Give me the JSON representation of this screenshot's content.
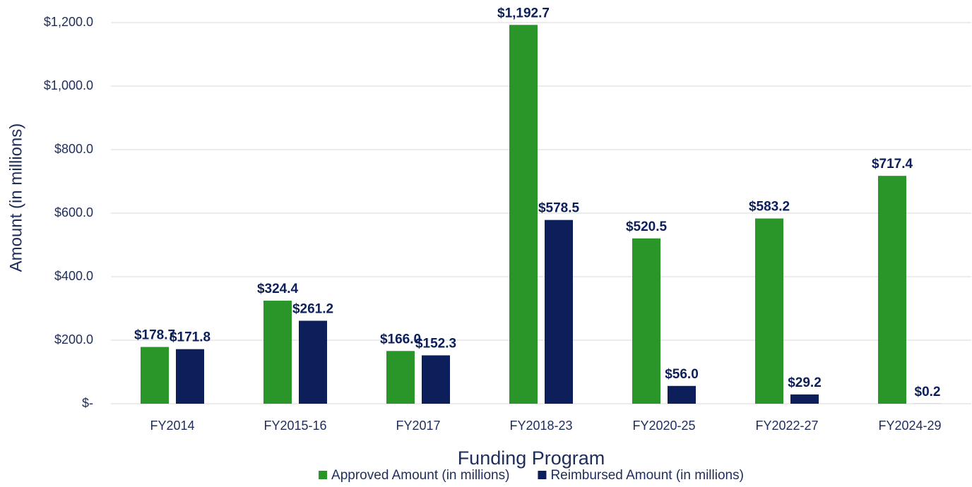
{
  "chart_data": {
    "type": "bar",
    "x_label": "Funding Program",
    "y_label": "Amount (in millions)",
    "categories": [
      "FY2014",
      "FY2015-16",
      "FY2017",
      "FY2018-23",
      "FY2020-25",
      "FY2022-27",
      "FY2024-29"
    ],
    "series": [
      {
        "name": "Approved Amount (in millions)",
        "color": "#2a9528",
        "values": [
          178.7,
          324.4,
          166.0,
          1192.7,
          520.5,
          583.2,
          717.4
        ],
        "value_labels": [
          "$178.7",
          "$324.4",
          "$166.0",
          "$1,192.7",
          "$520.5",
          "$583.2",
          "$717.4"
        ]
      },
      {
        "name": "Reimbursed Amount (in millions)",
        "color": "#0c1f5a",
        "values": [
          171.8,
          261.2,
          152.3,
          578.5,
          56.0,
          29.2,
          0.2
        ],
        "value_labels": [
          "$171.8",
          "$261.2",
          "$152.3",
          "$578.5",
          "$56.0",
          "$29.2",
          "$0.2"
        ]
      }
    ],
    "ylim": [
      0,
      1200
    ],
    "yticks": [
      {
        "value": 0,
        "label": "$-"
      },
      {
        "value": 200,
        "label": "$200.0"
      },
      {
        "value": 400,
        "label": "$400.0"
      },
      {
        "value": 600,
        "label": "$600.0"
      },
      {
        "value": 800,
        "label": "$800.0"
      },
      {
        "value": 1000,
        "label": "$1,000.0"
      },
      {
        "value": 1200,
        "label": "$1,200.0"
      }
    ],
    "grid": true,
    "legend": "bottom"
  }
}
